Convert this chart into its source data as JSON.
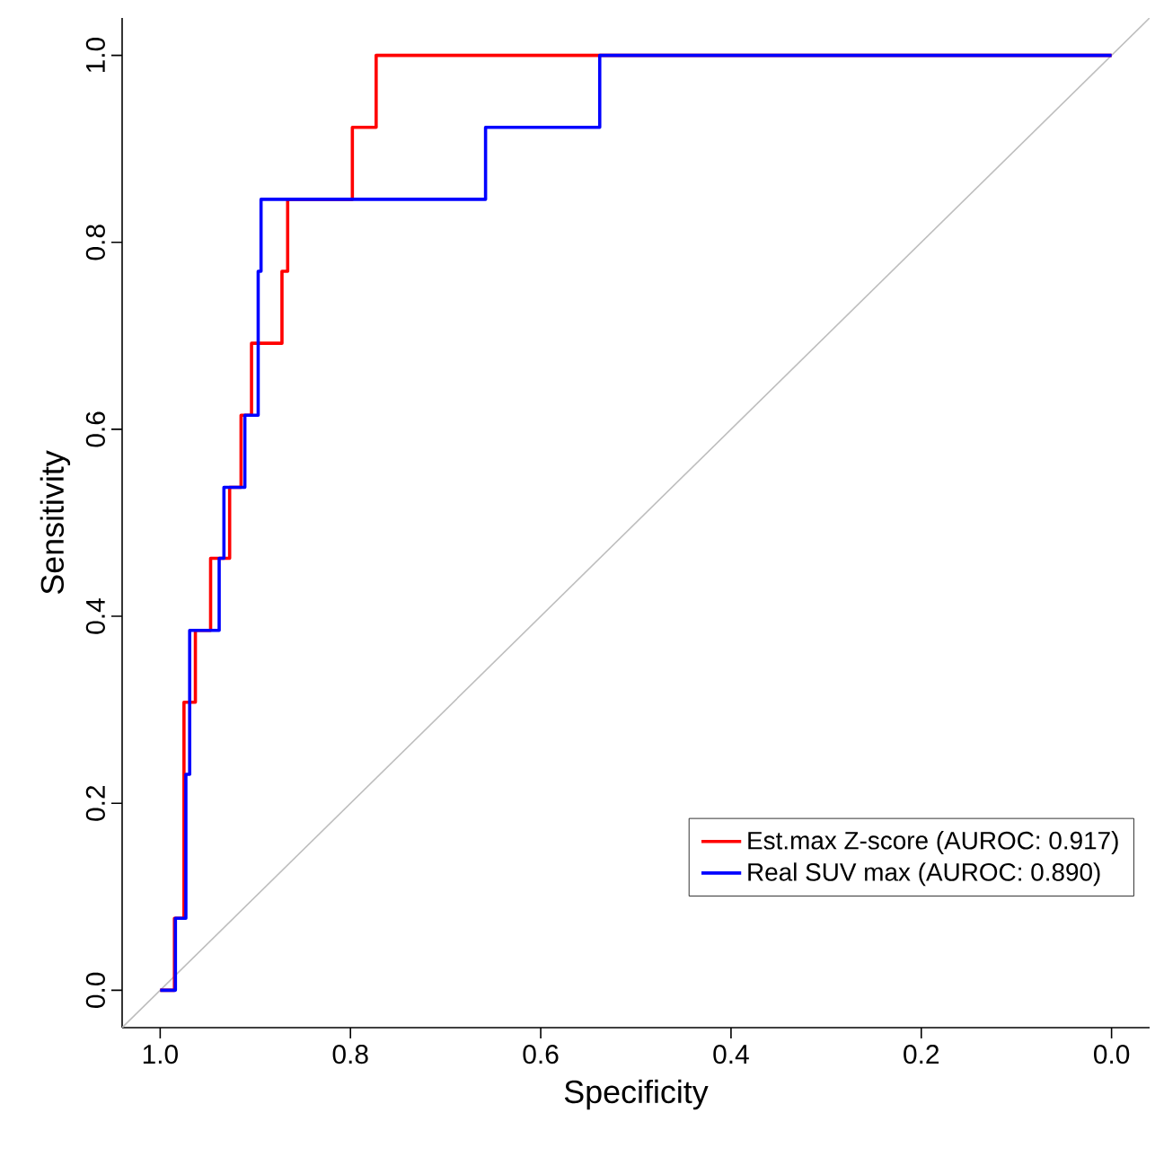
{
  "chart_data": {
    "type": "line",
    "xlabel": "Specificity",
    "ylabel": "Sensitivity",
    "xlim": [
      1.04,
      -0.04
    ],
    "ylim": [
      -0.04,
      1.04
    ],
    "xticks": [
      {
        "value": 1,
        "label": "1.0"
      },
      {
        "value": 0.8,
        "label": "0.8"
      },
      {
        "value": 0.6,
        "label": "0.6"
      },
      {
        "value": 0.4,
        "label": "0.4"
      },
      {
        "value": 0.2,
        "label": "0.2"
      },
      {
        "value": 0,
        "label": "0.0"
      }
    ],
    "yticks": [
      {
        "value": 0,
        "label": "0.0"
      },
      {
        "value": 0.2,
        "label": "0.2"
      },
      {
        "value": 0.4,
        "label": "0.4"
      },
      {
        "value": 0.6,
        "label": "0.6"
      },
      {
        "value": 0.8,
        "label": "0.8"
      },
      {
        "value": 1,
        "label": "1.0"
      }
    ],
    "grid": false,
    "legend": "bottom right",
    "line_style": "solid",
    "marker": "none",
    "series": [
      {
        "color": "#bebebe",
        "x": [
          1.04,
          -0.04
        ],
        "values": [
          -0.04,
          1.04
        ]
      },
      {
        "name": "Est.max Z-score (AUROC: 0.917)",
        "color": "#ff0000",
        "x": [
          1,
          0.985,
          0.985,
          0.975,
          0.975,
          0.963,
          0.963,
          0.947,
          0.947,
          0.927,
          0.927,
          0.915,
          0.915,
          0.904,
          0.904,
          0.872,
          0.872,
          0.866,
          0.866,
          0.798,
          0.798,
          0.773,
          0.773,
          0
        ],
        "values": [
          0,
          0,
          0.077,
          0.077,
          0.308,
          0.308,
          0.385,
          0.385,
          0.462,
          0.462,
          0.538,
          0.538,
          0.615,
          0.615,
          0.692,
          0.692,
          0.769,
          0.769,
          0.846,
          0.846,
          0.923,
          0.923,
          1,
          1
        ]
      },
      {
        "name": "Real SUV max (AUROC: 0.890)",
        "color": "#0000ff",
        "x": [
          1,
          0.984,
          0.984,
          0.973,
          0.973,
          0.969,
          0.969,
          0.938,
          0.938,
          0.933,
          0.933,
          0.911,
          0.911,
          0.897,
          0.897,
          0.894,
          0.894,
          0.658,
          0.658,
          0.538,
          0.538,
          0
        ],
        "values": [
          0,
          0,
          0.077,
          0.077,
          0.231,
          0.231,
          0.385,
          0.385,
          0.462,
          0.462,
          0.538,
          0.538,
          0.615,
          0.615,
          0.769,
          0.769,
          0.846,
          0.846,
          0.923,
          0.923,
          1,
          1
        ]
      }
    ]
  }
}
